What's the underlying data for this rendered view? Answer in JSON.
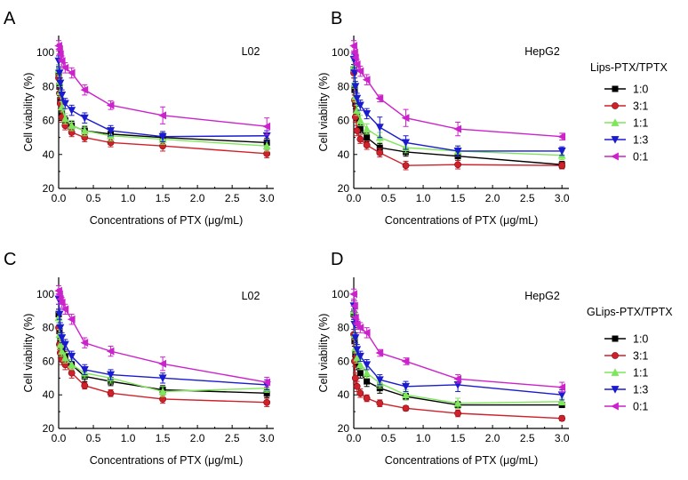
{
  "figure": {
    "legend_top": {
      "title": "Lips-PTX/TPTX",
      "entries": [
        "1:0",
        "3:1",
        "1:1",
        "1:3",
        "0:1"
      ]
    },
    "legend_bottom": {
      "title": "GLips-PTX/TPTX",
      "entries": [
        "1:0",
        "3:1",
        "1:1",
        "1:3",
        "0:1"
      ]
    },
    "series_colors": [
      "#000000",
      "#d0202a",
      "#7ee65a",
      "#1a1ad0",
      "#cc22cc"
    ],
    "series_markers": [
      "square",
      "circle",
      "triangle-up",
      "triangle-down",
      "triangle-left"
    ]
  },
  "chart_data": [
    {
      "panel": "A",
      "type": "line",
      "label": "L02",
      "xlabel": "Concentrations of PTX (μg/mL)",
      "ylabel": "Cell viability (%)",
      "xlim": [
        0,
        3.1
      ],
      "ylim": [
        20,
        110
      ],
      "xticks": [
        0.0,
        0.5,
        1.0,
        1.5,
        2.0,
        2.5,
        3.0
      ],
      "xtick_labels": [
        "0.0",
        "0.5",
        "1.0",
        "1.5",
        "2.0",
        "2.5",
        "3.0"
      ],
      "yticks": [
        20,
        40,
        60,
        80,
        100
      ],
      "ytick_labels": [
        "20",
        "40",
        "60",
        "80",
        "100"
      ],
      "x": [
        0.0,
        0.0117,
        0.0234,
        0.0469,
        0.0938,
        0.1875,
        0.375,
        0.75,
        1.5,
        3.0
      ],
      "series": [
        {
          "name": "1:0",
          "values": [
            88,
            80,
            72,
            64,
            60,
            57,
            54,
            52,
            50,
            47
          ],
          "errors": [
            3,
            3,
            3,
            3,
            2.5,
            2.5,
            2.5,
            2.5,
            2.5,
            2.5
          ]
        },
        {
          "name": "3:1",
          "values": [
            85,
            76,
            70,
            62,
            57,
            53,
            50,
            47,
            45,
            40.5
          ],
          "errors": [
            3,
            3,
            3,
            3,
            2.5,
            2.5,
            2.5,
            2.5,
            3,
            2.5
          ]
        },
        {
          "name": "1:1",
          "values": [
            90,
            83,
            77,
            68,
            61,
            57,
            54,
            51,
            49,
            45
          ],
          "errors": [
            3,
            3,
            3,
            3,
            3,
            3,
            3,
            3,
            3,
            3
          ]
        },
        {
          "name": "1:3",
          "values": [
            95,
            88,
            82,
            75,
            70,
            66,
            61.5,
            54,
            50.5,
            51
          ],
          "errors": [
            3,
            3,
            3,
            3,
            3,
            3,
            3,
            3,
            3,
            3
          ]
        },
        {
          "name": "0:1",
          "values": [
            104,
            102,
            99,
            95,
            91,
            88,
            78,
            69,
            63,
            56.5
          ],
          "errors": [
            3,
            3,
            3,
            3,
            3,
            3,
            3,
            2.5,
            5,
            5
          ]
        }
      ]
    },
    {
      "panel": "B",
      "type": "line",
      "label": "HepG2",
      "xlabel": "Concentrations of PTX (μg/mL)",
      "ylabel": "Cell viability (%)",
      "xlim": [
        0,
        3.1
      ],
      "ylim": [
        20,
        110
      ],
      "xticks": [
        0.0,
        0.5,
        1.0,
        1.5,
        2.0,
        2.5,
        3.0
      ],
      "xtick_labels": [
        "0.0",
        "0.5",
        "1.0",
        "1.5",
        "2.0",
        "2.5",
        "3.0"
      ],
      "yticks": [
        20,
        40,
        60,
        80,
        100
      ],
      "ytick_labels": [
        "20",
        "40",
        "60",
        "80",
        "100"
      ],
      "x": [
        0.0,
        0.0117,
        0.0234,
        0.0469,
        0.0938,
        0.1875,
        0.375,
        0.75,
        1.5,
        3.0
      ],
      "series": [
        {
          "name": "1:0",
          "values": [
            90,
            78,
            70,
            62,
            55,
            50,
            44,
            41.5,
            39,
            34
          ],
          "errors": [
            3,
            3,
            3,
            3,
            2.5,
            2.5,
            2.5,
            2.5,
            2.5,
            2
          ]
        },
        {
          "name": "3:1",
          "values": [
            88,
            72,
            62,
            54,
            49,
            45.5,
            41,
            33.5,
            34,
            33.5
          ],
          "errors": [
            3,
            3,
            3,
            3,
            2.5,
            2.5,
            2.5,
            2.5,
            2.5,
            2
          ]
        },
        {
          "name": "1:1",
          "values": [
            92,
            82,
            74,
            66,
            60,
            55,
            50,
            44,
            42,
            39.5
          ],
          "errors": [
            3,
            3,
            3,
            3,
            3,
            3,
            3,
            3,
            3,
            2.5
          ]
        },
        {
          "name": "1:3",
          "values": [
            96,
            88,
            80,
            73,
            69,
            64,
            56,
            47,
            42,
            42
          ],
          "errors": [
            3,
            3,
            3,
            3,
            3,
            3,
            6,
            4,
            3,
            2.5
          ]
        },
        {
          "name": "0:1",
          "values": [
            104,
            100,
            97,
            93,
            89,
            84,
            73,
            61.5,
            55,
            50.5
          ],
          "errors": [
            3,
            3,
            3,
            3,
            3,
            3,
            2,
            5,
            4,
            2
          ]
        }
      ]
    },
    {
      "panel": "C",
      "type": "line",
      "label": "L02",
      "xlabel": "Concentrations of PTX (μg/mL)",
      "ylabel": "Cell viability (%)",
      "xlim": [
        0,
        3.1
      ],
      "ylim": [
        20,
        110
      ],
      "xticks": [
        0.0,
        0.5,
        1.0,
        1.5,
        2.0,
        2.5,
        3.0
      ],
      "xtick_labels": [
        "0.0",
        "0.5",
        "1.0",
        "1.5",
        "2.0",
        "2.5",
        "3.0"
      ],
      "yticks": [
        20,
        40,
        60,
        80,
        100
      ],
      "ytick_labels": [
        "20",
        "40",
        "60",
        "80",
        "100"
      ],
      "x": [
        0.0,
        0.0117,
        0.0234,
        0.0469,
        0.0938,
        0.1875,
        0.375,
        0.75,
        1.5,
        3.0
      ],
      "series": [
        {
          "name": "1:0",
          "values": [
            88,
            78,
            72,
            67,
            63,
            58,
            51,
            48,
            43,
            41
          ],
          "errors": [
            3,
            3,
            3,
            3,
            3,
            3,
            3,
            2.5,
            2.5,
            2.5
          ]
        },
        {
          "name": "3:1",
          "values": [
            80,
            70,
            65,
            61,
            58,
            53,
            45.5,
            41,
            37.5,
            35.5
          ],
          "errors": [
            3,
            3,
            3,
            3,
            3,
            3,
            2,
            2,
            2.5,
            2.5
          ]
        },
        {
          "name": "1:1",
          "values": [
            86,
            76,
            70,
            66,
            62,
            58,
            53,
            50,
            42,
            44
          ],
          "errors": [
            3,
            3,
            3,
            3,
            3,
            3,
            3,
            3,
            3,
            2.5
          ]
        },
        {
          "name": "1:3",
          "values": [
            97,
            88,
            80,
            74,
            70,
            63,
            55,
            52,
            50,
            46
          ],
          "errors": [
            3,
            3,
            3,
            3,
            3,
            3,
            3,
            3,
            3,
            3
          ]
        },
        {
          "name": "0:1",
          "values": [
            102,
            100,
            97,
            95,
            91,
            85,
            71,
            66,
            58.5,
            47.5
          ],
          "errors": [
            3,
            3,
            3,
            3,
            3,
            3,
            3,
            3,
            4,
            3
          ]
        }
      ]
    },
    {
      "panel": "D",
      "type": "line",
      "label": "HepG2",
      "xlabel": "Concentrations of PTX (μg/mL)",
      "ylabel": "Cell viability (%)",
      "xlim": [
        0,
        3.1
      ],
      "ylim": [
        20,
        110
      ],
      "xticks": [
        0.0,
        0.5,
        1.0,
        1.5,
        2.0,
        2.5,
        3.0
      ],
      "xtick_labels": [
        "0.0",
        "0.5",
        "1.0",
        "1.5",
        "2.0",
        "2.5",
        "3.0"
      ],
      "yticks": [
        20,
        40,
        60,
        80,
        100
      ],
      "ytick_labels": [
        "20",
        "40",
        "60",
        "80",
        "100"
      ],
      "x": [
        0.0,
        0.0117,
        0.0234,
        0.0469,
        0.0938,
        0.1875,
        0.375,
        0.75,
        1.5,
        3.0
      ],
      "series": [
        {
          "name": "1:0",
          "values": [
            88,
            72,
            64,
            58,
            53,
            48,
            44,
            39,
            34,
            34
          ],
          "errors": [
            3,
            3,
            3,
            3,
            3,
            3,
            3,
            2,
            2,
            1.5
          ]
        },
        {
          "name": "3:1",
          "values": [
            76,
            60,
            50,
            45,
            41,
            38,
            35,
            32,
            29,
            26
          ],
          "errors": [
            3,
            3,
            3,
            3,
            2.5,
            2,
            2,
            1.5,
            2,
            1.5
          ]
        },
        {
          "name": "1:1",
          "values": [
            90,
            76,
            68,
            62,
            58,
            53,
            47,
            40,
            35,
            36
          ],
          "errors": [
            3,
            3,
            3,
            3,
            3,
            3,
            3,
            3,
            3,
            2
          ]
        },
        {
          "name": "1:3",
          "values": [
            93,
            82,
            74,
            67,
            63,
            58,
            49,
            45,
            46,
            40
          ],
          "errors": [
            3,
            3,
            3,
            3,
            3,
            3,
            3,
            3,
            4,
            3
          ]
        },
        {
          "name": "0:1",
          "values": [
            100,
            93,
            86,
            82,
            80,
            77,
            65,
            60,
            49.5,
            44.5
          ],
          "errors": [
            3,
            3,
            3,
            3,
            3,
            3,
            2,
            2,
            2.5,
            3
          ]
        }
      ]
    }
  ]
}
